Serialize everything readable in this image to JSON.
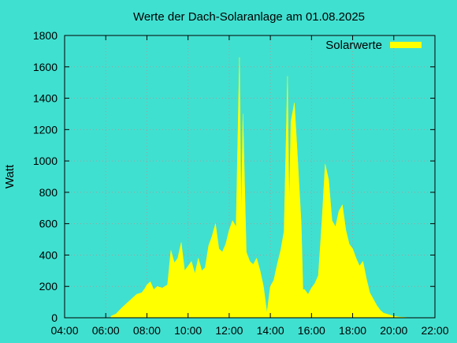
{
  "chart_data": {
    "type": "area",
    "title": "Werte der Dach-Solaranlage am 01.08.2025",
    "xlabel": "",
    "ylabel": "Watt",
    "xlim": [
      "04:00",
      "22:00"
    ],
    "ylim": [
      0,
      1800
    ],
    "x_ticks": [
      "04:00",
      "06:00",
      "08:00",
      "10:00",
      "12:00",
      "14:00",
      "16:00",
      "18:00",
      "20:00",
      "22:00"
    ],
    "y_ticks": [
      "0",
      "200",
      "400",
      "600",
      "800",
      "1000",
      "1200",
      "1400",
      "1600",
      "1800"
    ],
    "grid": true,
    "legend_position": "top-right",
    "colors": {
      "background": "#40e0d0",
      "series": "#ffff00",
      "grid": "#a0a0a0"
    },
    "series": [
      {
        "name": "Solarwerte",
        "x": [
          "06:15",
          "06:30",
          "06:45",
          "07:00",
          "07:15",
          "07:30",
          "07:45",
          "07:55",
          "08:00",
          "08:10",
          "08:20",
          "08:30",
          "08:45",
          "09:00",
          "09:10",
          "09:20",
          "09:30",
          "09:40",
          "09:50",
          "10:00",
          "10:10",
          "10:20",
          "10:30",
          "10:40",
          "10:50",
          "11:00",
          "11:10",
          "11:20",
          "11:30",
          "11:40",
          "11:50",
          "12:00",
          "12:10",
          "12:20",
          "12:30",
          "12:35",
          "12:40",
          "12:50",
          "13:00",
          "13:10",
          "13:20",
          "13:30",
          "13:40",
          "13:50",
          "14:00",
          "14:10",
          "14:20",
          "14:30",
          "14:40",
          "14:50",
          "14:55",
          "15:00",
          "15:10",
          "15:20",
          "15:30",
          "15:35",
          "15:40",
          "15:50",
          "16:00",
          "16:10",
          "16:20",
          "16:30",
          "16:40",
          "16:50",
          "17:00",
          "17:10",
          "17:20",
          "17:30",
          "17:40",
          "17:50",
          "18:00",
          "18:10",
          "18:20",
          "18:30",
          "18:40",
          "18:50",
          "19:00",
          "19:10",
          "19:20",
          "19:30",
          "19:45",
          "20:00",
          "20:15",
          "20:30",
          "20:45",
          "21:00"
        ],
        "values": [
          10,
          25,
          60,
          90,
          120,
          150,
          160,
          190,
          210,
          230,
          180,
          200,
          190,
          210,
          430,
          350,
          380,
          480,
          300,
          330,
          360,
          280,
          380,
          300,
          320,
          460,
          520,
          600,
          440,
          420,
          470,
          560,
          620,
          580,
          1660,
          640,
          1300,
          420,
          360,
          340,
          380,
          300,
          200,
          30,
          200,
          240,
          340,
          430,
          550,
          1540,
          700,
          1250,
          1370,
          1000,
          600,
          180,
          180,
          150,
          190,
          220,
          270,
          600,
          980,
          880,
          620,
          580,
          680,
          720,
          560,
          470,
          440,
          380,
          330,
          360,
          250,
          160,
          120,
          80,
          50,
          30,
          20,
          10,
          5,
          3,
          1,
          0
        ]
      }
    ]
  }
}
